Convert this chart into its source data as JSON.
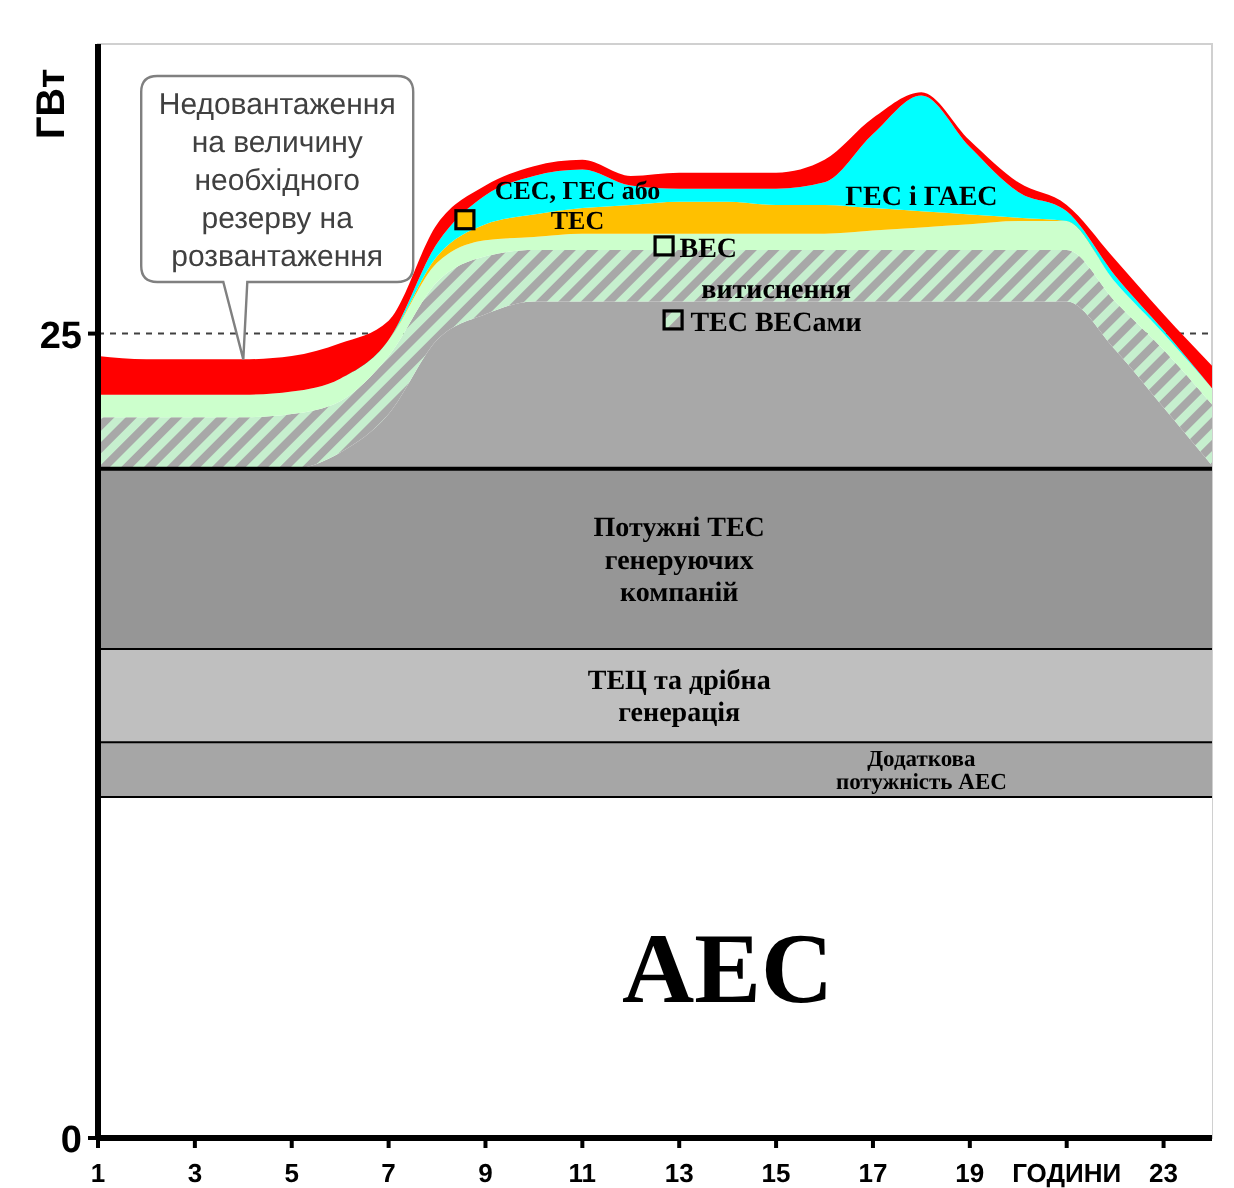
{
  "chart_data": {
    "type": "area",
    "stacked": true,
    "ylabel": "ГВт",
    "x": [
      1,
      2,
      3,
      4,
      5,
      6,
      7,
      8,
      9,
      10,
      11,
      12,
      13,
      14,
      15,
      16,
      17,
      18,
      19,
      20,
      21,
      22,
      23,
      24
    ],
    "xlim": [
      1,
      24
    ],
    "xticks": [
      1,
      3,
      5,
      7,
      9,
      11,
      13,
      15,
      17,
      19,
      {
        "value": 21,
        "label": "ГОДИНИ"
      },
      23
    ],
    "ylim": [
      0,
      34
    ],
    "yticks": [
      0,
      25
    ],
    "grid": false,
    "legend": "top",
    "ref_lines": [
      {
        "axis": "y",
        "value": 25,
        "line_style": "dashed",
        "color": "#404040"
      }
    ],
    "series": [
      {
        "name": "АЕС",
        "color": "#ffffff",
        "values": [
          10.6,
          10.6,
          10.6,
          10.6,
          10.6,
          10.6,
          10.6,
          10.6,
          10.6,
          10.6,
          10.6,
          10.6,
          10.6,
          10.6,
          10.6,
          10.6,
          10.6,
          10.6,
          10.6,
          10.6,
          10.6,
          10.6,
          10.6,
          10.6
        ]
      },
      {
        "name": "Додаткова потужність АЕС",
        "color": "#a6a6a6",
        "values": [
          1.7,
          1.7,
          1.7,
          1.7,
          1.7,
          1.7,
          1.7,
          1.7,
          1.7,
          1.7,
          1.7,
          1.7,
          1.7,
          1.7,
          1.7,
          1.7,
          1.7,
          1.7,
          1.7,
          1.7,
          1.7,
          1.7,
          1.7,
          1.7
        ]
      },
      {
        "name": "ТЕЦ та дрібна генерація",
        "color": "#bfbfbf",
        "values": [
          2.9,
          2.9,
          2.9,
          2.9,
          2.9,
          2.9,
          2.9,
          2.9,
          2.9,
          2.9,
          2.9,
          2.9,
          2.9,
          2.9,
          2.9,
          2.9,
          2.9,
          2.9,
          2.9,
          2.9,
          2.9,
          2.9,
          2.9,
          2.9
        ]
      },
      {
        "name": "Потужні ТЕС генеруючих компаній",
        "color": "#969696",
        "values": [
          5.6,
          5.6,
          5.6,
          5.6,
          5.6,
          5.6,
          5.6,
          5.6,
          5.6,
          5.6,
          5.6,
          5.6,
          5.6,
          5.6,
          5.6,
          5.6,
          5.6,
          5.6,
          5.6,
          5.6,
          5.6,
          5.6,
          5.6,
          5.6
        ]
      },
      {
        "color": "#a8a8a8",
        "values": [
          0,
          0,
          0,
          0,
          0,
          0.5,
          1.7,
          4.0,
          4.8,
          5.2,
          5.2,
          5.2,
          5.2,
          5.2,
          5.2,
          5.2,
          5.2,
          5.2,
          5.2,
          5.2,
          5.2,
          3.7,
          1.9,
          0.1
        ]
      },
      {
        "name": "витиснення ТЕС ВЕСами",
        "color": "#c6efce",
        "values": [
          1.6,
          1.6,
          1.6,
          1.6,
          1.7,
          1.6,
          1.8,
          1.8,
          1.8,
          1.6,
          1.6,
          1.6,
          1.6,
          1.6,
          1.6,
          1.6,
          1.6,
          1.6,
          1.6,
          1.6,
          1.6,
          1.5,
          1.8,
          1.9
        ]
      },
      {
        "name": "ВЕС",
        "color": "#ccffcc",
        "values": [
          0.7,
          0.7,
          0.7,
          0.7,
          0.7,
          0.7,
          0.5,
          0.6,
          0.5,
          0.4,
          0.5,
          0.5,
          0.5,
          0.5,
          0.5,
          0.5,
          0.6,
          0.7,
          0.8,
          0.9,
          0.9,
          0.6,
          0.5,
          0.5
        ]
      },
      {
        "name": "СЕС, ГЕС або ТЕС",
        "color": "#ffc000",
        "values": [
          0,
          0,
          0,
          0,
          0,
          0,
          0,
          0.2,
          0.5,
          0.7,
          0.8,
          0.9,
          1.0,
          1.0,
          0.9,
          0.9,
          0.7,
          0.5,
          0.3,
          0.1,
          0,
          0,
          0,
          0
        ]
      },
      {
        "name": "ГЕС і ГАЕС",
        "color": "#00ffff",
        "values": [
          0,
          0,
          0,
          0,
          0,
          0,
          0,
          0.4,
          0.9,
          1.2,
          1.2,
          0.6,
          0.4,
          0.4,
          0.5,
          0.7,
          2.3,
          3.6,
          2.1,
          0.8,
          0.3,
          0.2,
          0.1,
          0
        ]
      },
      {
        "name": "Недовантаження на величину необхідного резерву на розвантаження",
        "color": "#ff0000",
        "values": [
          1.2,
          1.1,
          1.1,
          1.1,
          1.1,
          1.1,
          0.6,
          0.6,
          0.3,
          0.3,
          0.3,
          0.3,
          0.5,
          0.5,
          0.5,
          0.7,
          0.5,
          0.1,
          0.2,
          0.3,
          0.2,
          0.5,
          0.5,
          0.7
        ]
      }
    ]
  }
}
